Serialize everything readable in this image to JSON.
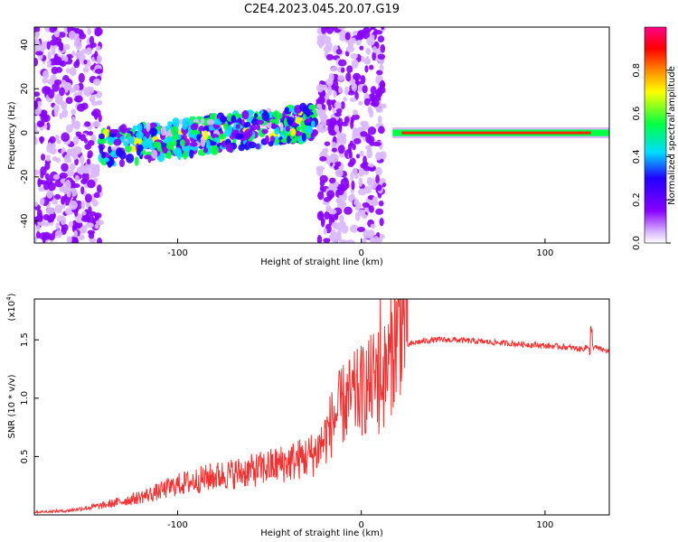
{
  "title": "C2E4.2023.045.20.07.G19",
  "chart_data": [
    {
      "type": "heatmap",
      "xlabel": "Height of straight line (km)",
      "ylabel": "Frequency (Hz)",
      "xlim": [
        -178,
        135
      ],
      "ylim": [
        -50,
        48
      ],
      "x_ticks": [
        -100,
        0,
        100
      ],
      "y_ticks": [
        -40,
        -20,
        0,
        20,
        40
      ],
      "colorbar": {
        "label": "Normalized spectral amplitude",
        "range": [
          0,
          1
        ],
        "ticks": [
          "0.0",
          "0.2",
          "0.4",
          "0.6",
          "0.8"
        ],
        "colors": [
          "#ffffff",
          "#d9b8ff",
          "#8800ff",
          "#2200ff",
          "#00ddff",
          "#00ff44",
          "#ffff00",
          "#ff8800",
          "#ff0000",
          "#ff0088"
        ]
      },
      "regions": [
        {
          "x": [
            -178,
            -142
          ],
          "freq_center": 0,
          "freq_spread": 50,
          "amplitude": 0.15,
          "description_hidden": true
        },
        {
          "x": [
            -142,
            -25
          ],
          "freq_center_start": -7,
          "freq_center_end": 5,
          "amplitude": 0.35
        },
        {
          "x": [
            -23,
            12
          ],
          "freq_center": 0,
          "freq_spread": 50,
          "amplitude": 0.15
        },
        {
          "x": [
            17,
            135
          ],
          "freq_center": 0,
          "freq_spread": 1,
          "amplitude": 0.85
        }
      ]
    },
    {
      "type": "line",
      "xlabel": "Height of straight line (km)",
      "ylabel": "SNR (10 * v/v)",
      "y_multiplier": "(x10",
      "y_multiplier_exp": "4",
      "xlim": [
        -178,
        135
      ],
      "ylim": [
        0,
        1.85
      ],
      "x_ticks": [
        -100,
        0,
        100
      ],
      "y_ticks": [
        "0.5",
        "1.0",
        "1.5"
      ],
      "color": "#ee3333",
      "series": [
        {
          "x": [
            -178,
            -160,
            -150,
            -140,
            -130,
            -120,
            -110,
            -100,
            -90,
            -80,
            -70,
            -60,
            -50,
            -40,
            -30,
            -25,
            -20,
            -15,
            -10,
            -5,
            0,
            5,
            8,
            10,
            12,
            15,
            20,
            25,
            30,
            40,
            50,
            60,
            70,
            80,
            90,
            100,
            110,
            120,
            125,
            130,
            135
          ],
          "values": [
            0.02,
            0.03,
            0.05,
            0.07,
            0.1,
            0.13,
            0.17,
            0.22,
            0.25,
            0.28,
            0.3,
            0.32,
            0.35,
            0.38,
            0.42,
            0.45,
            0.55,
            0.7,
            0.8,
            0.85,
            0.9,
            0.95,
            1.0,
            1.1,
            1.0,
            1.1,
            1.35,
            1.45,
            1.48,
            1.5,
            1.5,
            1.49,
            1.48,
            1.47,
            1.46,
            1.45,
            1.44,
            1.42,
            1.45,
            1.42,
            1.4
          ]
        }
      ]
    }
  ]
}
